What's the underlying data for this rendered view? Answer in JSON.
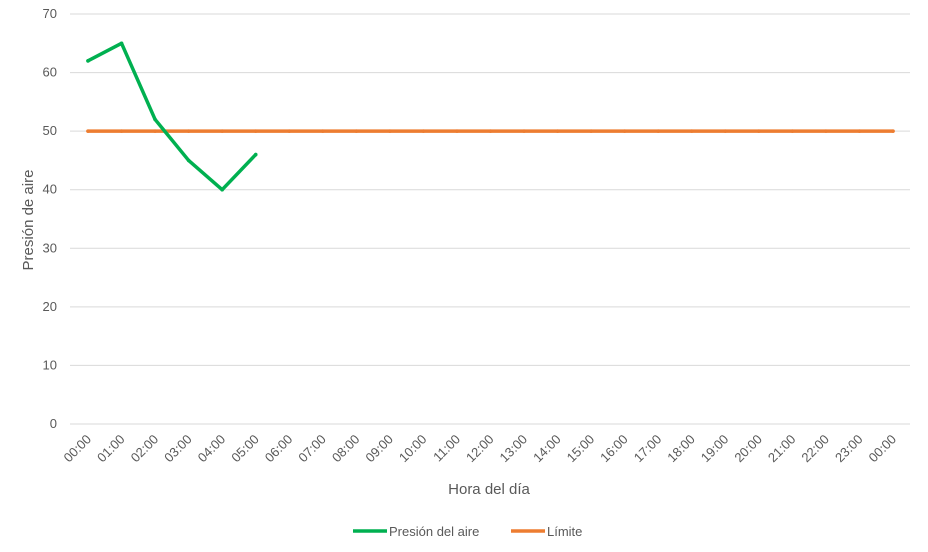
{
  "chart_data": {
    "type": "line",
    "title": "",
    "xlabel": "Hora del día",
    "ylabel": "Presión de aire",
    "ylim": [
      0,
      70
    ],
    "yticks": [
      0,
      10,
      20,
      30,
      40,
      50,
      60,
      70
    ],
    "categories": [
      "00:00",
      "01:00",
      "02:00",
      "03:00",
      "04:00",
      "05:00",
      "06:00",
      "07:00",
      "08:00",
      "09:00",
      "10:00",
      "11:00",
      "12:00",
      "13:00",
      "14:00",
      "15:00",
      "16:00",
      "17:00",
      "18:00",
      "19:00",
      "20:00",
      "21:00",
      "22:00",
      "23:00",
      "00:00"
    ],
    "series": [
      {
        "name": "Presión del aire",
        "color": "#00b050",
        "values": [
          62,
          65,
          52,
          45,
          40,
          46,
          null,
          null,
          null,
          null,
          null,
          null,
          null,
          null,
          null,
          null,
          null,
          null,
          null,
          null,
          null,
          null,
          null,
          null,
          null
        ]
      },
      {
        "name": "Límite",
        "color": "#ed7d31",
        "values": [
          50,
          50,
          50,
          50,
          50,
          50,
          50,
          50,
          50,
          50,
          50,
          50,
          50,
          50,
          50,
          50,
          50,
          50,
          50,
          50,
          50,
          50,
          50,
          50,
          50
        ]
      }
    ],
    "grid": "horizontal",
    "legend_position": "bottom"
  }
}
